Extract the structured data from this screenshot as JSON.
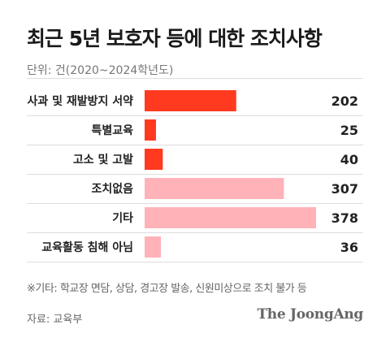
{
  "header": {
    "title": "최근 5년 보호자 등에 대한 조치사항",
    "unit": "단위: 건(2020~2024학년도)"
  },
  "footer": {
    "note": "※기타: 학교장 면담, 상담, 경고장 발송, 신원미상으로 조치 불가 등",
    "source": "자료: 교육부",
    "logo": "The JoongAng"
  },
  "colors": {
    "highlight": "#ff3a1f",
    "muted": "#ffb3b8",
    "divider": "#dddddd"
  },
  "chart_data": {
    "type": "bar",
    "orientation": "horizontal",
    "title": "최근 5년 보호자 등에 대한 조치사항",
    "unit_label": "단위: 건(2020~2024학년도)",
    "categories": [
      "사과 및 재발방지 서약",
      "특별교육",
      "고소 및 고발",
      "조치없음",
      "기타",
      "교육활동 침해 아님"
    ],
    "values": [
      202,
      25,
      40,
      307,
      378,
      36
    ],
    "highlight": [
      true,
      true,
      true,
      false,
      false,
      false
    ],
    "xlim": [
      0,
      378
    ],
    "grid": false,
    "legend": "none"
  }
}
